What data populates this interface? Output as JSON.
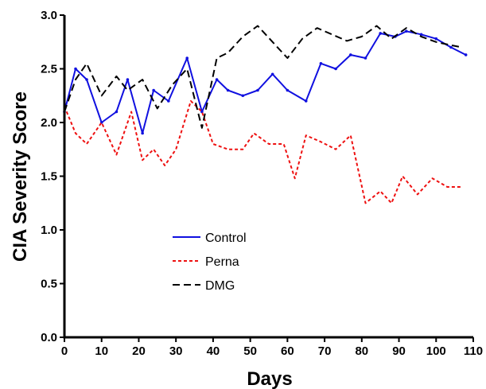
{
  "chart_data": {
    "type": "line",
    "xlabel": "Days",
    "ylabel": "CIA Severity Score",
    "xlim": [
      0,
      110
    ],
    "ylim": [
      0,
      3
    ],
    "xticks": [
      0,
      10,
      20,
      30,
      40,
      50,
      60,
      70,
      80,
      90,
      100,
      110
    ],
    "yticks": [
      "0.0",
      "0.5",
      "1.0",
      "1.5",
      "2.0",
      "2.5",
      "3.0"
    ],
    "grid": false,
    "legend_position": "center-left",
    "series": [
      {
        "name": "Control",
        "color": "#1010e0",
        "style": "solid-with-points",
        "x": [
          0,
          3,
          6,
          10,
          14,
          17,
          21,
          24,
          28,
          33,
          37,
          41,
          44,
          48,
          52,
          56,
          60,
          65,
          69,
          73,
          77,
          81,
          85,
          89,
          92,
          96,
          100,
          104,
          108
        ],
        "y": [
          2.1,
          2.5,
          2.4,
          2.0,
          2.1,
          2.4,
          1.9,
          2.3,
          2.2,
          2.6,
          2.1,
          2.4,
          2.3,
          2.25,
          2.3,
          2.45,
          2.3,
          2.2,
          2.55,
          2.5,
          2.63,
          2.6,
          2.83,
          2.8,
          2.85,
          2.82,
          2.78,
          2.7,
          2.63
        ]
      },
      {
        "name": "Perna",
        "color": "#ee1111",
        "style": "dotted",
        "x": [
          0,
          3,
          6,
          10,
          14,
          18,
          21,
          24,
          27,
          30,
          34,
          37,
          40,
          44,
          48,
          51,
          55,
          59,
          62,
          65,
          69,
          73,
          77,
          81,
          85,
          88,
          91,
          95,
          99,
          103,
          107
        ],
        "y": [
          2.15,
          1.9,
          1.8,
          2.0,
          1.7,
          2.1,
          1.65,
          1.75,
          1.6,
          1.75,
          2.2,
          2.1,
          1.8,
          1.75,
          1.75,
          1.9,
          1.8,
          1.8,
          1.48,
          1.88,
          1.82,
          1.75,
          1.88,
          1.25,
          1.36,
          1.25,
          1.5,
          1.33,
          1.48,
          1.4,
          1.4
        ]
      },
      {
        "name": "DMG",
        "color": "#000000",
        "style": "dashed",
        "x": [
          0,
          3,
          6,
          10,
          14,
          17,
          21,
          25,
          29,
          33,
          37,
          41,
          44,
          48,
          52,
          56,
          60,
          64,
          68,
          72,
          76,
          80,
          84,
          88,
          92,
          96,
          100,
          104,
          107
        ],
        "y": [
          2.1,
          2.4,
          2.55,
          2.25,
          2.43,
          2.3,
          2.4,
          2.13,
          2.35,
          2.5,
          1.95,
          2.6,
          2.65,
          2.8,
          2.9,
          2.75,
          2.6,
          2.78,
          2.88,
          2.82,
          2.76,
          2.8,
          2.9,
          2.78,
          2.88,
          2.8,
          2.75,
          2.72,
          2.7
        ]
      }
    ]
  }
}
